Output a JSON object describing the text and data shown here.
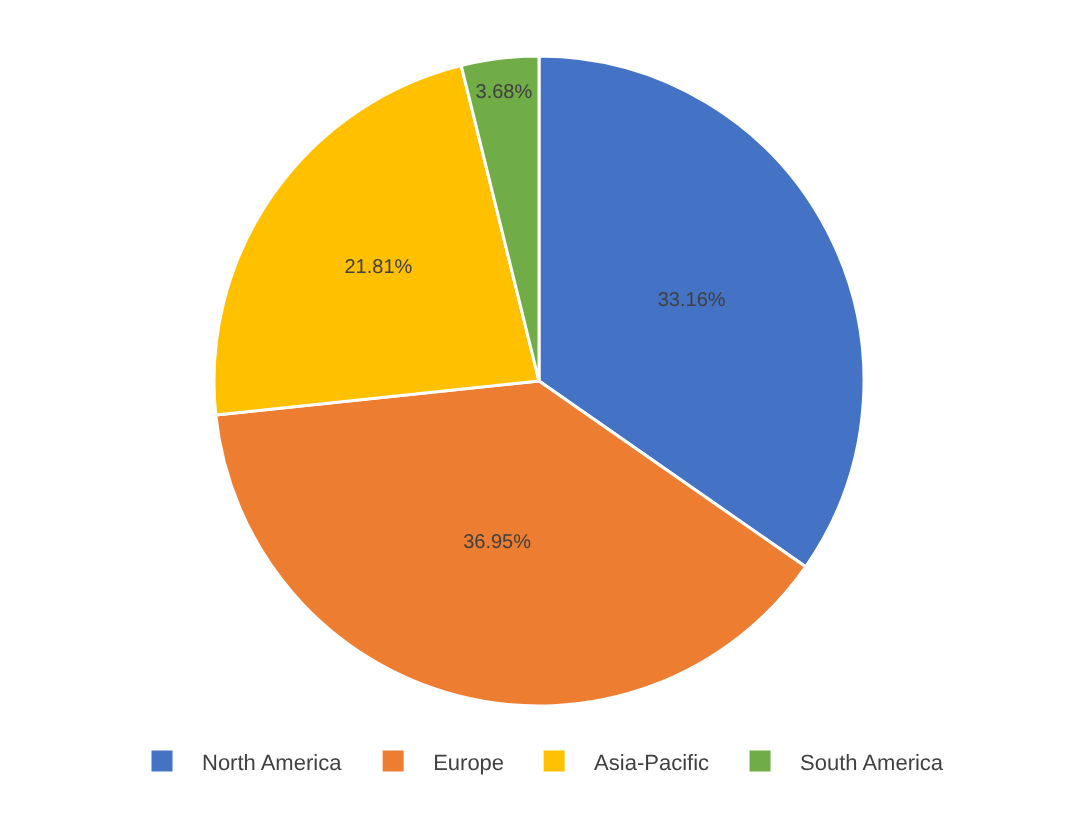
{
  "chart_data": {
    "type": "pie",
    "categories": [
      "North America",
      "Europe",
      "Asia-Pacific",
      "South America"
    ],
    "values": [
      33.16,
      36.95,
      21.81,
      3.68
    ],
    "value_labels": [
      "33.16%",
      "36.95%",
      "21.81%",
      "3.68%"
    ],
    "colors": [
      "#4472c4",
      "#ed7d31",
      "#ffc000",
      "#70ad47"
    ],
    "legend": "bottom"
  }
}
